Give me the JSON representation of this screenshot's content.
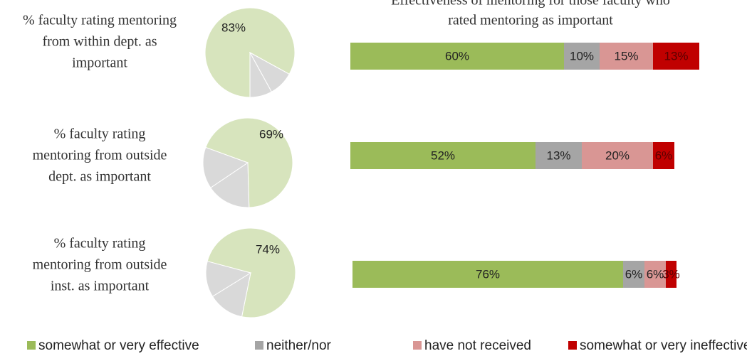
{
  "chart_data": [
    {
      "type": "pie",
      "title": [
        "% faculty rating mentoring",
        "from within dept. as",
        "important"
      ],
      "values": [
        83,
        9,
        8
      ],
      "value_labels": [
        "83%",
        null,
        null
      ],
      "colors": [
        "#d7e4bd",
        "#d9d9d9",
        "#d9d9d9"
      ]
    },
    {
      "type": "pie",
      "title": [
        "% faculty rating",
        "mentoring from outside",
        "dept. as important"
      ],
      "values": [
        69,
        16,
        15
      ],
      "value_labels": [
        "69%",
        null,
        null
      ],
      "colors": [
        "#d7e4bd",
        "#d9d9d9",
        "#d9d9d9"
      ]
    },
    {
      "type": "pie",
      "title": [
        "% faculty rating",
        "mentoring from outside",
        "inst. as important"
      ],
      "values": [
        74,
        13,
        13
      ],
      "value_labels": [
        "74%",
        null,
        null
      ],
      "colors": [
        "#d7e4bd",
        "#d9d9d9",
        "#d9d9d9"
      ]
    },
    {
      "type": "stacked-bar",
      "title": [
        "Effectiveness of mentoring for those faculty who",
        "rated mentoring as important"
      ],
      "series": [
        {
          "name": "somewhat or very effective",
          "color": "#9bbb59",
          "values": [
            60,
            52,
            76
          ],
          "value_labels": [
            "60%",
            "52%",
            "76%"
          ]
        },
        {
          "name": "neither/nor",
          "color": "#a5a5a5",
          "values": [
            10,
            13,
            6
          ],
          "value_labels": [
            "10%",
            "13%",
            "6%"
          ]
        },
        {
          "name": "have not received",
          "color": "#d99694",
          "values": [
            15,
            20,
            6
          ],
          "value_labels": [
            "15%",
            "20%",
            "6%"
          ]
        },
        {
          "name": "somewhat or very ineffective",
          "color": "#c00000",
          "values": [
            13,
            6,
            3
          ],
          "value_labels": [
            "13%",
            "6%",
            "3%"
          ]
        }
      ]
    }
  ]
}
